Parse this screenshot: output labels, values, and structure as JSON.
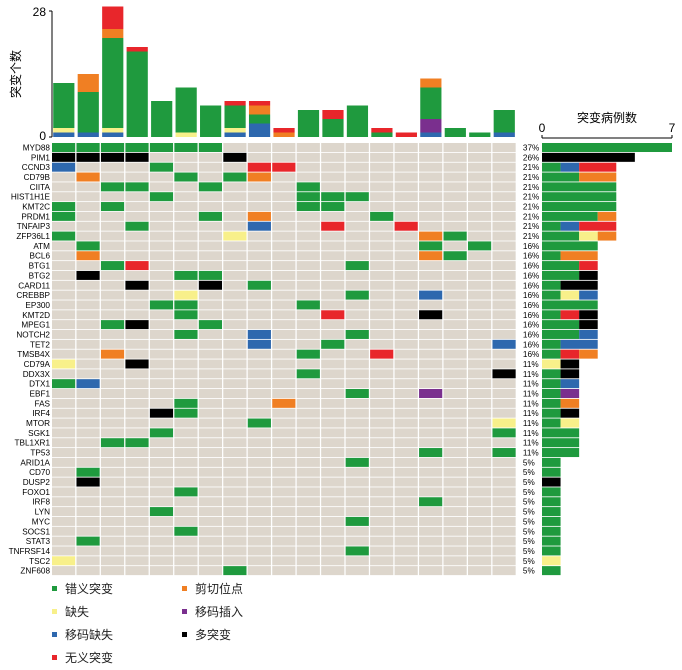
{
  "chart_data": {
    "type": "oncoprint",
    "top_bar": {
      "ylabel": "突变个数",
      "yticks": [
        "0",
        "28"
      ],
      "ymax": 28,
      "samples": [
        {
          "green": 10,
          "yellow": 1,
          "blue": 1
        },
        {
          "green": 9,
          "orange": 4,
          "blue": 1
        },
        {
          "green": 20,
          "red": 5,
          "orange": 2,
          "yellow": 1,
          "blue": 1
        },
        {
          "green": 19,
          "red": 1
        },
        {
          "green": 8
        },
        {
          "green": 10,
          "yellow": 1
        },
        {
          "green": 7
        },
        {
          "green": 5,
          "yellow": 1,
          "blue": 1,
          "red": 1
        },
        {
          "green": 2,
          "blue": 3,
          "red": 1,
          "orange": 2
        },
        {
          "orange": 1,
          "red": 1
        },
        {
          "green": 6
        },
        {
          "green": 4,
          "red": 2
        },
        {
          "green": 7
        },
        {
          "green": 1,
          "red": 1
        },
        {
          "red": 1
        },
        {
          "green": 7,
          "purple": 3,
          "blue": 1,
          "orange": 2
        },
        {
          "green": 2
        },
        {
          "green": 1
        },
        {
          "green": 5,
          "blue": 1
        }
      ]
    },
    "right_bar": {
      "title": "突变病例数",
      "xticks": [
        "0",
        "7"
      ],
      "xmax": 7
    },
    "genes": [
      {
        "name": "MYD88",
        "pct": "37%",
        "cells": {
          "0": "g",
          "1": "g",
          "2": "g",
          "3": "g",
          "4": "g",
          "5": "g",
          "6": "g"
        },
        "bar": [
          [
            "g",
            7
          ]
        ]
      },
      {
        "name": "PIM1",
        "pct": "26%",
        "cells": {
          "0": "k",
          "1": "k",
          "2": "k",
          "3": "k",
          "7": "k"
        },
        "bar": [
          [
            "k",
            5
          ]
        ]
      },
      {
        "name": "CCND3",
        "pct": "21%",
        "cells": {
          "0": "b",
          "4": "g",
          "8": "r",
          "9": "r"
        },
        "bar": [
          [
            "g",
            1
          ],
          [
            "b",
            1
          ],
          [
            "r",
            2
          ]
        ]
      },
      {
        "name": "CD79B",
        "pct": "21%",
        "cells": {
          "1": "o",
          "5": "g",
          "7": "g",
          "8": "o"
        },
        "bar": [
          [
            "g",
            2
          ],
          [
            "o",
            2
          ]
        ]
      },
      {
        "name": "CIITA",
        "pct": "21%",
        "cells": {
          "2": "g",
          "3": "g",
          "6": "g",
          "10": "g"
        },
        "bar": [
          [
            "g",
            4
          ]
        ]
      },
      {
        "name": "HIST1H1E",
        "pct": "21%",
        "cells": {
          "4": "g",
          "10": "g",
          "11": "g",
          "12": "g"
        },
        "bar": [
          [
            "g",
            4
          ]
        ]
      },
      {
        "name": "KMT2C",
        "pct": "21%",
        "cells": {
          "0": "g",
          "2": "g",
          "10": "g",
          "11": "g"
        },
        "bar": [
          [
            "g",
            4
          ]
        ]
      },
      {
        "name": "PRDM1",
        "pct": "21%",
        "cells": {
          "0": "g",
          "6": "g",
          "8": "o",
          "13": "g"
        },
        "bar": [
          [
            "g",
            3
          ],
          [
            "o",
            1
          ]
        ]
      },
      {
        "name": "TNFAIP3",
        "pct": "21%",
        "cells": {
          "3": "g",
          "8": "b",
          "11": "r",
          "14": "r"
        },
        "bar": [
          [
            "g",
            1
          ],
          [
            "b",
            1
          ],
          [
            "r",
            2
          ]
        ]
      },
      {
        "name": "ZFP36L1",
        "pct": "21%",
        "cells": {
          "0": "g",
          "7": "y",
          "15": "o",
          "16": "g"
        },
        "bar": [
          [
            "g",
            2
          ],
          [
            "y",
            1
          ],
          [
            "o",
            1
          ]
        ]
      },
      {
        "name": "ATM",
        "pct": "16%",
        "cells": {
          "1": "g",
          "15": "g",
          "17": "g"
        },
        "bar": [
          [
            "g",
            3
          ]
        ]
      },
      {
        "name": "BCL6",
        "pct": "16%",
        "cells": {
          "1": "o",
          "15": "o",
          "16": "g"
        },
        "bar": [
          [
            "g",
            1
          ],
          [
            "o",
            2
          ]
        ]
      },
      {
        "name": "BTG1",
        "pct": "16%",
        "cells": {
          "2": "g",
          "3": "r",
          "12": "g"
        },
        "bar": [
          [
            "g",
            2
          ],
          [
            "r",
            1
          ]
        ]
      },
      {
        "name": "BTG2",
        "pct": "16%",
        "cells": {
          "1": "k",
          "5": "g",
          "6": "g"
        },
        "bar": [
          [
            "g",
            2
          ],
          [
            "k",
            1
          ]
        ]
      },
      {
        "name": "CARD11",
        "pct": "16%",
        "cells": {
          "3": "k",
          "6": "k",
          "8": "g"
        },
        "bar": [
          [
            "g",
            1
          ],
          [
            "k",
            2
          ]
        ]
      },
      {
        "name": "CREBBP",
        "pct": "16%",
        "cells": {
          "5": "y",
          "12": "g",
          "15": "b"
        },
        "bar": [
          [
            "g",
            1
          ],
          [
            "y",
            1
          ],
          [
            "b",
            1
          ]
        ]
      },
      {
        "name": "EP300",
        "pct": "16%",
        "cells": {
          "4": "g",
          "5": "g",
          "10": "g"
        },
        "bar": [
          [
            "g",
            3
          ]
        ]
      },
      {
        "name": "KMT2D",
        "pct": "16%",
        "cells": {
          "5": "g",
          "11": "r",
          "15": "k"
        },
        "bar": [
          [
            "g",
            1
          ],
          [
            "r",
            1
          ],
          [
            "k",
            1
          ]
        ]
      },
      {
        "name": "MPEG1",
        "pct": "16%",
        "cells": {
          "2": "g",
          "3": "k",
          "6": "g"
        },
        "bar": [
          [
            "g",
            2
          ],
          [
            "k",
            1
          ]
        ]
      },
      {
        "name": "NOTCH2",
        "pct": "16%",
        "cells": {
          "5": "g",
          "8": "b",
          "12": "g"
        },
        "bar": [
          [
            "g",
            2
          ],
          [
            "b",
            1
          ]
        ]
      },
      {
        "name": "TET2",
        "pct": "16%",
        "cells": {
          "8": "b",
          "11": "g",
          "18": "b"
        },
        "bar": [
          [
            "g",
            1
          ],
          [
            "b",
            2
          ]
        ]
      },
      {
        "name": "TMSB4X",
        "pct": "16%",
        "cells": {
          "2": "o",
          "10": "g",
          "13": "r"
        },
        "bar": [
          [
            "g",
            1
          ],
          [
            "r",
            1
          ],
          [
            "o",
            1
          ]
        ]
      },
      {
        "name": "CD79A",
        "pct": "11%",
        "cells": {
          "0": "y",
          "3": "k"
        },
        "bar": [
          [
            "y",
            1
          ],
          [
            "k",
            1
          ]
        ]
      },
      {
        "name": "DDX3X",
        "pct": "11%",
        "cells": {
          "10": "g",
          "18": "k"
        },
        "bar": [
          [
            "g",
            1
          ],
          [
            "k",
            1
          ]
        ]
      },
      {
        "name": "DTX1",
        "pct": "11%",
        "cells": {
          "0": "g",
          "1": "b"
        },
        "bar": [
          [
            "g",
            1
          ],
          [
            "b",
            1
          ]
        ]
      },
      {
        "name": "EBF1",
        "pct": "11%",
        "cells": {
          "12": "g",
          "15": "p"
        },
        "bar": [
          [
            "g",
            1
          ],
          [
            "p",
            1
          ]
        ]
      },
      {
        "name": "FAS",
        "pct": "11%",
        "cells": {
          "5": "g",
          "9": "o"
        },
        "bar": [
          [
            "g",
            1
          ],
          [
            "o",
            1
          ]
        ]
      },
      {
        "name": "IRF4",
        "pct": "11%",
        "cells": {
          "4": "k",
          "5": "g"
        },
        "bar": [
          [
            "g",
            1
          ],
          [
            "k",
            1
          ]
        ]
      },
      {
        "name": "MTOR",
        "pct": "11%",
        "cells": {
          "8": "g",
          "18": "y"
        },
        "bar": [
          [
            "g",
            1
          ],
          [
            "y",
            1
          ]
        ]
      },
      {
        "name": "SGK1",
        "pct": "11%",
        "cells": {
          "4": "g",
          "18": "g"
        },
        "bar": [
          [
            "g",
            2
          ]
        ]
      },
      {
        "name": "TBL1XR1",
        "pct": "11%",
        "cells": {
          "2": "g",
          "3": "g"
        },
        "bar": [
          [
            "g",
            2
          ]
        ]
      },
      {
        "name": "TP53",
        "pct": "11%",
        "cells": {
          "15": "g",
          "18": "g"
        },
        "bar": [
          [
            "g",
            2
          ]
        ]
      },
      {
        "name": "ARID1A",
        "pct": "5%",
        "cells": {
          "12": "g"
        },
        "bar": [
          [
            "g",
            1
          ]
        ]
      },
      {
        "name": "CD70",
        "pct": "5%",
        "cells": {
          "1": "g"
        },
        "bar": [
          [
            "g",
            1
          ]
        ]
      },
      {
        "name": "DUSP2",
        "pct": "5%",
        "cells": {
          "1": "k"
        },
        "bar": [
          [
            "k",
            1
          ]
        ]
      },
      {
        "name": "FOXO1",
        "pct": "5%",
        "cells": {
          "5": "g"
        },
        "bar": [
          [
            "g",
            1
          ]
        ]
      },
      {
        "name": "IRF8",
        "pct": "5%",
        "cells": {
          "15": "g"
        },
        "bar": [
          [
            "g",
            1
          ]
        ]
      },
      {
        "name": "LYN",
        "pct": "5%",
        "cells": {
          "4": "g"
        },
        "bar": [
          [
            "g",
            1
          ]
        ]
      },
      {
        "name": "MYC",
        "pct": "5%",
        "cells": {
          "12": "g"
        },
        "bar": [
          [
            "g",
            1
          ]
        ]
      },
      {
        "name": "SOCS1",
        "pct": "5%",
        "cells": {
          "5": "g"
        },
        "bar": [
          [
            "g",
            1
          ]
        ]
      },
      {
        "name": "STAT3",
        "pct": "5%",
        "cells": {
          "1": "g"
        },
        "bar": [
          [
            "g",
            1
          ]
        ]
      },
      {
        "name": "TNFRSF14",
        "pct": "5%",
        "cells": {
          "12": "g"
        },
        "bar": [
          [
            "g",
            1
          ]
        ]
      },
      {
        "name": "TSC2",
        "pct": "5%",
        "cells": {
          "0": "y"
        },
        "bar": [
          [
            "y",
            1
          ]
        ]
      },
      {
        "name": "ZNF608",
        "pct": "5%",
        "cells": {
          "7": "g"
        },
        "bar": [
          [
            "g",
            1
          ]
        ]
      }
    ]
  },
  "colors": {
    "g": "#1f9a3e",
    "o": "#f07f23",
    "y": "#f8f08a",
    "p": "#7a2f8e",
    "b": "#2e68ae",
    "k": "#000000",
    "r": "#e8262b",
    "background": "#ddd6cc"
  },
  "legend": [
    {
      "key": "g",
      "label": "错义突变"
    },
    {
      "key": "o",
      "label": "剪切位点"
    },
    {
      "key": "y",
      "label": "缺失"
    },
    {
      "key": "p",
      "label": "移码插入"
    },
    {
      "key": "b",
      "label": "移码缺失"
    },
    {
      "key": "k",
      "label": "多突变"
    },
    {
      "key": "r",
      "label": "无义突变"
    }
  ]
}
